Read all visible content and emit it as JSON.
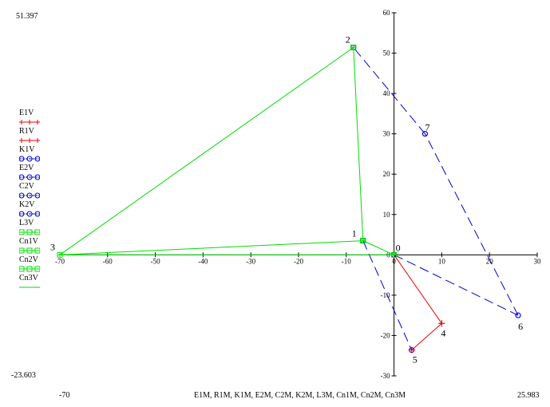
{
  "corner_labels": {
    "y_top": "51.397",
    "y_bottom": "-23.603",
    "x_left": "-70",
    "x_right": "25.983"
  },
  "x_axis_caption": "E1M, R1M, K1M, E2M, C2M, K2M, L3M, Cn1M, Cn2M, Cn3M",
  "colors": {
    "green": "#00dd00",
    "blue": "#0000cc",
    "red": "#ee0000",
    "purple": "#8800aa"
  },
  "chart_data": {
    "type": "line",
    "xlim": [
      -70,
      30
    ],
    "ylim": [
      -30,
      60
    ],
    "x_ticks": [
      -70,
      -60,
      -50,
      -40,
      -30,
      -20,
      -10,
      0,
      10,
      20,
      30
    ],
    "y_ticks": [
      -30,
      -20,
      -10,
      0,
      10,
      20,
      30,
      40,
      50,
      60
    ],
    "grid": false,
    "points": [
      {
        "label": "0",
        "x": 0,
        "y": 0
      },
      {
        "label": "1",
        "x": -6.5,
        "y": 3.5
      },
      {
        "label": "2",
        "x": -8.5,
        "y": 51.4
      },
      {
        "label": "3",
        "x": -70,
        "y": 0
      },
      {
        "label": "4",
        "x": 10,
        "y": -17
      },
      {
        "label": "5",
        "x": 3.7,
        "y": -23.6
      },
      {
        "label": "6",
        "x": 26,
        "y": -15
      },
      {
        "label": "7",
        "x": 6.5,
        "y": 30
      }
    ],
    "series": [
      {
        "name": "E1V",
        "style": "red-plus",
        "segments": [
          [
            0,
            4
          ],
          [
            4,
            5
          ]
        ]
      },
      {
        "name": "R1V",
        "style": "red-plus",
        "segments": []
      },
      {
        "name": "K1V",
        "style": "blue-circle-dash",
        "segments": [
          [
            1,
            5
          ]
        ]
      },
      {
        "name": "E2V",
        "style": "blue-circle-dash",
        "segments": [
          [
            0,
            6
          ]
        ]
      },
      {
        "name": "C2V",
        "style": "blue-circle-dash",
        "segments": [
          [
            6,
            7
          ]
        ]
      },
      {
        "name": "K2V",
        "style": "blue-circle-dash",
        "segments": [
          [
            7,
            2
          ]
        ]
      },
      {
        "name": "L3V",
        "style": "green-square",
        "segments": [
          [
            0,
            1
          ]
        ]
      },
      {
        "name": "Cn1V",
        "style": "green-square",
        "segments": [
          [
            1,
            2
          ]
        ]
      },
      {
        "name": "Cn2V",
        "style": "green-square",
        "segments": [
          [
            2,
            3
          ]
        ]
      },
      {
        "name": "Cn3V",
        "style": "green-line",
        "segments": [
          [
            3,
            0
          ],
          [
            3,
            1
          ]
        ]
      }
    ]
  }
}
